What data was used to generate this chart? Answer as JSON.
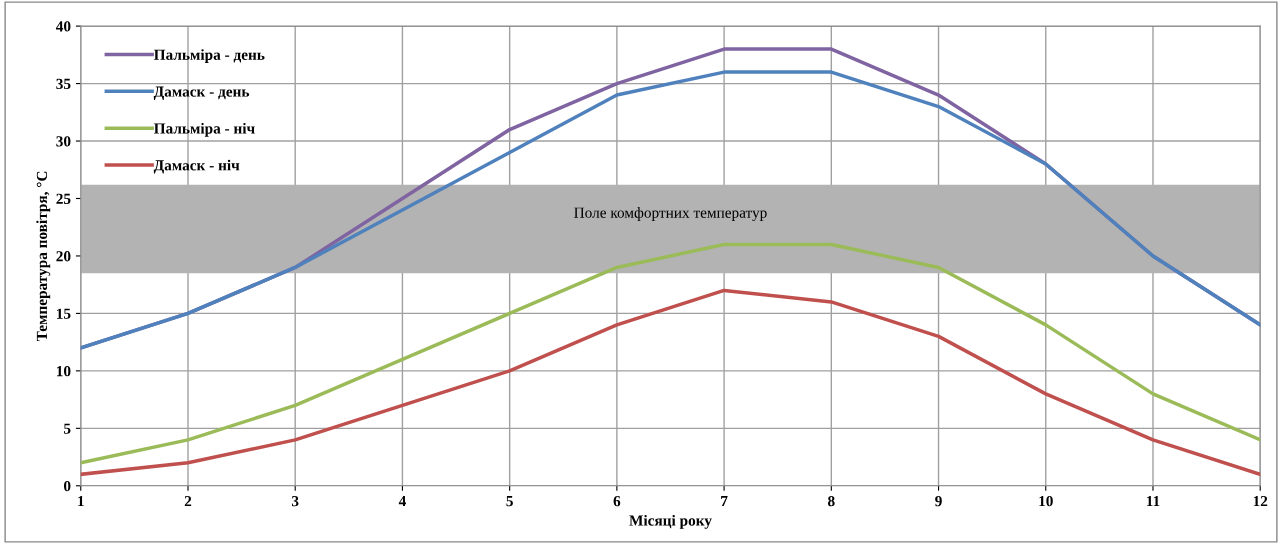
{
  "chart_data": {
    "type": "line",
    "xlabel": "Місяці року",
    "ylabel": "Температура повітря, °C",
    "x": [
      1,
      2,
      3,
      4,
      5,
      6,
      7,
      8,
      9,
      10,
      11,
      12
    ],
    "series": [
      {
        "name": "Пальміра - день",
        "color": "#8064a2",
        "values": [
          12,
          15,
          19,
          25,
          31,
          35,
          38,
          38,
          34,
          28,
          20,
          14
        ]
      },
      {
        "name": "Дамаск - день",
        "color": "#4f81bd",
        "values": [
          12,
          15,
          19,
          24,
          29,
          34,
          36,
          36,
          33,
          28,
          20,
          14
        ]
      },
      {
        "name": "Пальміра - ніч",
        "color": "#9bbb59",
        "values": [
          2,
          4,
          7,
          11,
          15,
          19,
          21,
          21,
          19,
          14,
          8,
          4
        ]
      },
      {
        "name": "Дамаск - ніч",
        "color": "#c0504d",
        "values": [
          1,
          2,
          4,
          7,
          10,
          14,
          17,
          16,
          13,
          8,
          4,
          1
        ]
      }
    ],
    "bands": [
      {
        "axis": "y",
        "from": 18.5,
        "to": 26.2,
        "label": "Поле комфортних температур",
        "color": "#b3b3b3"
      }
    ],
    "xlim": [
      1,
      12
    ],
    "xticks": [
      1,
      2,
      3,
      4,
      5,
      6,
      7,
      8,
      9,
      10,
      11,
      12
    ],
    "ylim": [
      0,
      40
    ],
    "yticks": [
      0,
      5,
      10,
      15,
      20,
      25,
      30,
      35,
      40
    ],
    "grid": true,
    "legend": "top left",
    "marker": "none",
    "line_style": "solid"
  }
}
